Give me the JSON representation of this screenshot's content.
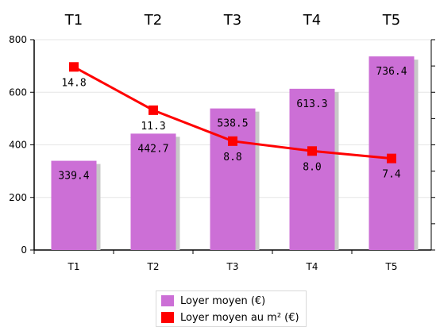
{
  "chart_data": {
    "type": "bar",
    "categories": [
      "T1",
      "T2",
      "T3",
      "T4",
      "T5"
    ],
    "ylim": [
      0,
      800
    ],
    "yticks": [
      0,
      200,
      400,
      600,
      800
    ],
    "grid": true,
    "legend_position": "bottom",
    "series": [
      {
        "name": "Loyer moyen (€)",
        "type": "bar",
        "color": "#cc6fd6",
        "values": [
          339.4,
          442.7,
          538.5,
          613.3,
          736.4
        ],
        "labels": [
          "339.4",
          "442.7",
          "538.5",
          "613.3",
          "736.4"
        ]
      },
      {
        "name": "Loyer moyen au m² (€)",
        "type": "line",
        "color": "#ff0000",
        "values": [
          14.8,
          11.3,
          8.8,
          8.0,
          7.4
        ],
        "labels": [
          "14.8",
          "11.3",
          "8.8",
          "8.0",
          "7.4"
        ],
        "secondary_axis_range": [
          0,
          17
        ]
      }
    ]
  }
}
